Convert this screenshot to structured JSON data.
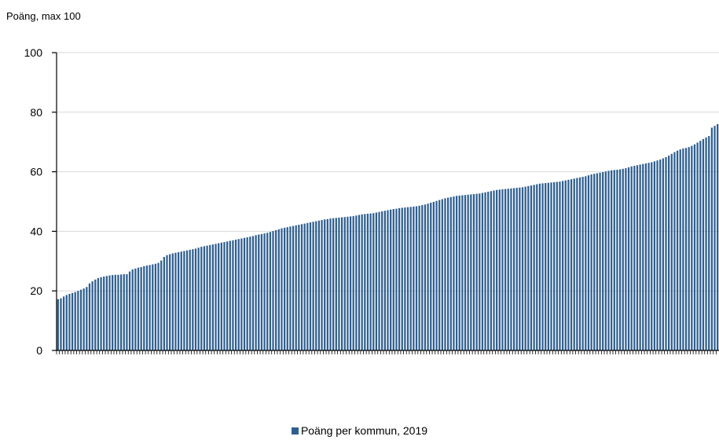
{
  "chart_data": {
    "type": "bar",
    "title": "",
    "ylabel": "Poäng, max 100",
    "xlabel": "",
    "ylim": [
      0,
      100
    ],
    "yticks": [
      "0",
      "20",
      "40",
      "60",
      "80",
      "100"
    ],
    "grid": true,
    "legend_position": "bottom",
    "colors": {
      "bar": "#2e5f91",
      "bar_highlight": "#1f4f80",
      "grid": "#d9d9d9",
      "axis": "#000000"
    },
    "series": [
      {
        "name": "Poäng per kommun, 2019",
        "values": [
          17.2,
          17.5,
          18.1,
          18.6,
          19.0,
          19.3,
          19.6,
          20.0,
          20.4,
          20.8,
          21.3,
          22.5,
          23.2,
          23.8,
          24.3,
          24.6,
          24.8,
          25.0,
          25.2,
          25.3,
          25.4,
          25.4,
          25.5,
          25.6,
          25.6,
          26.5,
          27.2,
          27.5,
          27.8,
          28.0,
          28.3,
          28.5,
          28.7,
          28.9,
          29.1,
          29.4,
          30.2,
          31.4,
          32.0,
          32.3,
          32.6,
          32.8,
          33.0,
          33.2,
          33.4,
          33.6,
          33.8,
          34.0,
          34.2,
          34.5,
          34.8,
          35.0,
          35.2,
          35.4,
          35.6,
          35.8,
          36.0,
          36.2,
          36.4,
          36.6,
          36.8,
          37.0,
          37.2,
          37.4,
          37.6,
          37.8,
          38.0,
          38.2,
          38.4,
          38.7,
          38.9,
          39.1,
          39.3,
          39.5,
          39.8,
          40.1,
          40.4,
          40.7,
          41.0,
          41.2,
          41.4,
          41.6,
          41.8,
          42.0,
          42.2,
          42.4,
          42.6,
          42.8,
          43.0,
          43.2,
          43.4,
          43.6,
          43.8,
          44.0,
          44.1,
          44.3,
          44.4,
          44.5,
          44.6,
          44.7,
          44.8,
          44.9,
          45.0,
          45.1,
          45.3,
          45.5,
          45.7,
          45.8,
          45.9,
          46.0,
          46.1,
          46.3,
          46.5,
          46.7,
          46.9,
          47.1,
          47.3,
          47.5,
          47.6,
          47.8,
          47.9,
          48.0,
          48.1,
          48.2,
          48.3,
          48.4,
          48.6,
          48.8,
          49.0,
          49.3,
          49.6,
          49.9,
          50.2,
          50.5,
          50.8,
          51.1,
          51.3,
          51.5,
          51.7,
          51.9,
          52.0,
          52.1,
          52.2,
          52.3,
          52.4,
          52.5,
          52.6,
          52.7,
          52.9,
          53.1,
          53.3,
          53.5,
          53.7,
          53.9,
          54.0,
          54.1,
          54.2,
          54.3,
          54.4,
          54.5,
          54.6,
          54.7,
          54.8,
          55.0,
          55.2,
          55.4,
          55.6,
          55.8,
          56.0,
          56.1,
          56.2,
          56.3,
          56.4,
          56.5,
          56.6,
          56.7,
          56.9,
          57.1,
          57.3,
          57.5,
          57.7,
          57.9,
          58.1,
          58.3,
          58.5,
          58.8,
          59.1,
          59.3,
          59.5,
          59.7,
          59.9,
          60.1,
          60.3,
          60.5,
          60.6,
          60.7,
          60.8,
          61.0,
          61.2,
          61.5,
          61.8,
          62.0,
          62.2,
          62.4,
          62.6,
          62.8,
          63.0,
          63.2,
          63.5,
          63.8,
          64.1,
          64.5,
          64.9,
          65.4,
          66.0,
          66.6,
          67.1,
          67.5,
          67.8,
          68.0,
          68.3,
          68.7,
          69.2,
          69.8,
          70.4,
          71.0,
          71.5,
          72.0,
          74.8,
          75.4,
          76.0
        ]
      }
    ]
  }
}
